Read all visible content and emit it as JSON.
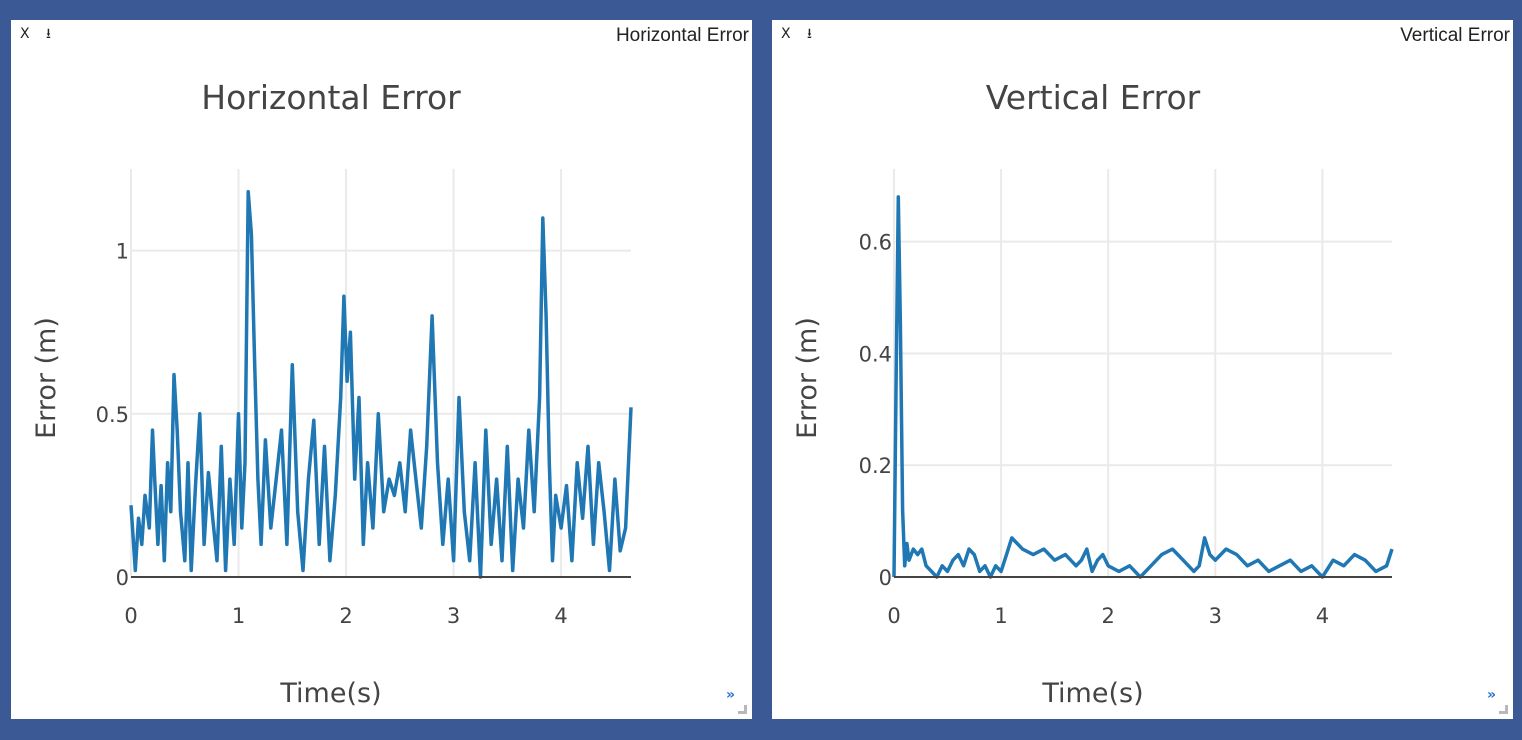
{
  "panels": [
    {
      "header_title": "Horizontal Error",
      "close_label": "X",
      "download_label": "⭳",
      "expand_label": "»"
    },
    {
      "header_title": "Vertical Error",
      "close_label": "X",
      "download_label": "⭳",
      "expand_label": "»"
    }
  ],
  "chart_data": [
    {
      "type": "line",
      "title": "Horizontal Error",
      "xlabel": "Time(s)",
      "ylabel": "Error (m)",
      "xlim": [
        0,
        4.65
      ],
      "ylim": [
        0,
        1.25
      ],
      "xticks": [
        0,
        1,
        2,
        3,
        4
      ],
      "xtick_labels": [
        "0",
        "1",
        "2",
        "3",
        "4"
      ],
      "yticks": [
        0,
        0.5,
        1
      ],
      "ytick_labels": [
        "0",
        "0.5",
        "1"
      ],
      "grid": true,
      "color": "#1f77b4",
      "series": [
        {
          "x": [
            0,
            0.04,
            0.07,
            0.1,
            0.13,
            0.17,
            0.2,
            0.22,
            0.25,
            0.28,
            0.31,
            0.34,
            0.37,
            0.4,
            0.43,
            0.46,
            0.5,
            0.53,
            0.56,
            0.6,
            0.64,
            0.68,
            0.72,
            0.76,
            0.8,
            0.84,
            0.88,
            0.92,
            0.96,
            1.0,
            1.03,
            1.06,
            1.09,
            1.12,
            1.15,
            1.18,
            1.21,
            1.25,
            1.3,
            1.35,
            1.4,
            1.45,
            1.5,
            1.55,
            1.6,
            1.65,
            1.7,
            1.75,
            1.8,
            1.85,
            1.9,
            1.95,
            1.98,
            2.01,
            2.04,
            2.08,
            2.12,
            2.16,
            2.2,
            2.25,
            2.3,
            2.35,
            2.4,
            2.45,
            2.5,
            2.55,
            2.6,
            2.65,
            2.7,
            2.75,
            2.8,
            2.85,
            2.9,
            2.95,
            3.0,
            3.05,
            3.1,
            3.15,
            3.2,
            3.25,
            3.3,
            3.35,
            3.4,
            3.45,
            3.5,
            3.55,
            3.6,
            3.65,
            3.7,
            3.75,
            3.8,
            3.83,
            3.86,
            3.89,
            3.92,
            3.95,
            4.0,
            4.05,
            4.1,
            4.15,
            4.2,
            4.25,
            4.3,
            4.35,
            4.4,
            4.45,
            4.5,
            4.55,
            4.6,
            4.65
          ],
          "y": [
            0.22,
            0.02,
            0.18,
            0.1,
            0.25,
            0.15,
            0.45,
            0.3,
            0.1,
            0.28,
            0.05,
            0.35,
            0.2,
            0.62,
            0.45,
            0.2,
            0.05,
            0.35,
            0.02,
            0.28,
            0.5,
            0.1,
            0.32,
            0.18,
            0.05,
            0.4,
            0.02,
            0.3,
            0.1,
            0.5,
            0.15,
            0.35,
            1.18,
            1.05,
            0.65,
            0.3,
            0.1,
            0.42,
            0.15,
            0.3,
            0.45,
            0.1,
            0.65,
            0.2,
            0.02,
            0.3,
            0.48,
            0.1,
            0.4,
            0.05,
            0.25,
            0.55,
            0.86,
            0.6,
            0.75,
            0.3,
            0.55,
            0.1,
            0.35,
            0.15,
            0.5,
            0.2,
            0.3,
            0.25,
            0.35,
            0.2,
            0.45,
            0.3,
            0.15,
            0.4,
            0.8,
            0.35,
            0.1,
            0.3,
            0.05,
            0.55,
            0.2,
            0.05,
            0.35,
            0.0,
            0.45,
            0.1,
            0.3,
            0.05,
            0.4,
            0.02,
            0.3,
            0.15,
            0.45,
            0.2,
            0.55,
            1.1,
            0.8,
            0.35,
            0.05,
            0.25,
            0.15,
            0.28,
            0.05,
            0.35,
            0.18,
            0.4,
            0.1,
            0.35,
            0.2,
            0.02,
            0.3,
            0.08,
            0.15,
            0.52
          ]
        }
      ]
    },
    {
      "type": "line",
      "title": "Vertical Error",
      "xlabel": "Time(s)",
      "ylabel": "Error (m)",
      "xlim": [
        0,
        4.65
      ],
      "ylim": [
        0,
        0.73
      ],
      "xticks": [
        0,
        1,
        2,
        3,
        4
      ],
      "xtick_labels": [
        "0",
        "1",
        "2",
        "3",
        "4"
      ],
      "yticks": [
        0,
        0.2,
        0.4,
        0.6
      ],
      "ytick_labels": [
        "0",
        "0.2",
        "0.4",
        "0.6"
      ],
      "grid": true,
      "color": "#1f77b4",
      "series": [
        {
          "x": [
            0,
            0.02,
            0.04,
            0.06,
            0.08,
            0.1,
            0.12,
            0.14,
            0.18,
            0.22,
            0.26,
            0.3,
            0.35,
            0.4,
            0.45,
            0.5,
            0.55,
            0.6,
            0.65,
            0.7,
            0.75,
            0.8,
            0.85,
            0.9,
            0.95,
            1.0,
            1.05,
            1.1,
            1.15,
            1.2,
            1.3,
            1.4,
            1.5,
            1.6,
            1.7,
            1.75,
            1.8,
            1.85,
            1.9,
            1.95,
            2.0,
            2.1,
            2.2,
            2.3,
            2.4,
            2.5,
            2.6,
            2.7,
            2.8,
            2.85,
            2.9,
            2.95,
            3.0,
            3.1,
            3.2,
            3.3,
            3.4,
            3.5,
            3.6,
            3.7,
            3.8,
            3.9,
            4.0,
            4.1,
            4.2,
            4.3,
            4.4,
            4.5,
            4.6,
            4.65
          ],
          "y": [
            0.0,
            0.35,
            0.68,
            0.45,
            0.12,
            0.02,
            0.06,
            0.03,
            0.05,
            0.04,
            0.05,
            0.02,
            0.01,
            0.0,
            0.02,
            0.01,
            0.03,
            0.04,
            0.02,
            0.05,
            0.04,
            0.01,
            0.02,
            0.0,
            0.02,
            0.01,
            0.04,
            0.07,
            0.06,
            0.05,
            0.04,
            0.05,
            0.03,
            0.04,
            0.02,
            0.03,
            0.05,
            0.01,
            0.03,
            0.04,
            0.02,
            0.01,
            0.02,
            0.0,
            0.02,
            0.04,
            0.05,
            0.03,
            0.01,
            0.02,
            0.07,
            0.04,
            0.03,
            0.05,
            0.04,
            0.02,
            0.03,
            0.01,
            0.02,
            0.03,
            0.01,
            0.02,
            0.0,
            0.03,
            0.02,
            0.04,
            0.03,
            0.01,
            0.02,
            0.05
          ]
        }
      ]
    }
  ]
}
